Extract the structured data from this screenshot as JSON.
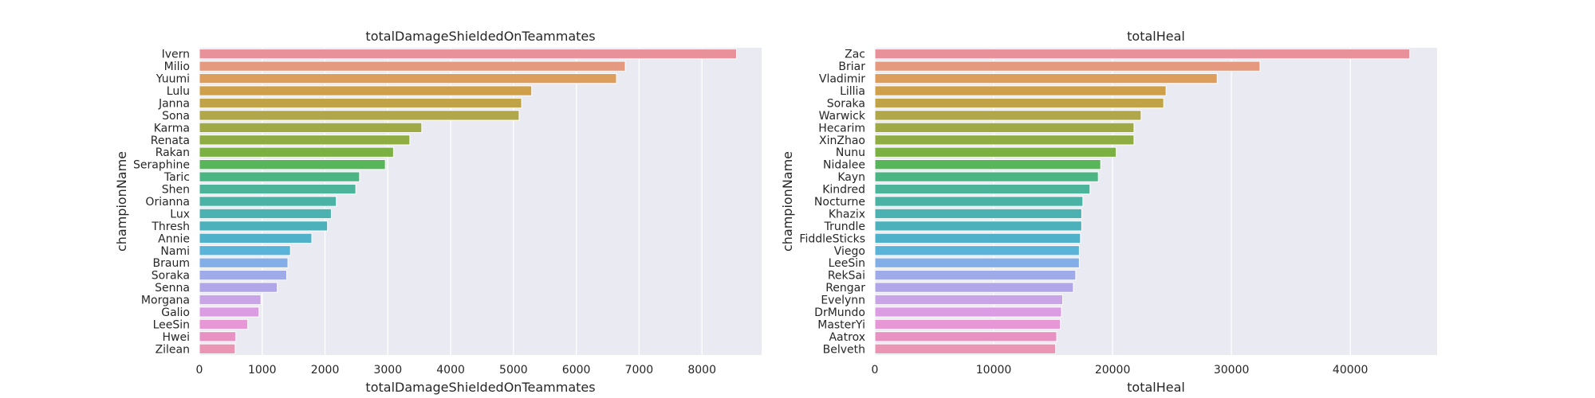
{
  "chart_data": [
    {
      "type": "bar",
      "orientation": "horizontal",
      "title": "totalDamageShieldedOnTeammates",
      "xlabel": "totalDamageShieldedOnTeammates",
      "ylabel": "championName",
      "xlim": [
        0,
        8950
      ],
      "xticks": [
        0,
        1000,
        2000,
        3000,
        4000,
        5000,
        6000,
        7000,
        8000
      ],
      "grid": true,
      "categories": [
        "Ivern",
        "Milio",
        "Yuumi",
        "Lulu",
        "Janna",
        "Sona",
        "Karma",
        "Renata",
        "Rakan",
        "Seraphine",
        "Taric",
        "Shen",
        "Orianna",
        "Lux",
        "Thresh",
        "Annie",
        "Nami",
        "Braum",
        "Soraka",
        "Senna",
        "Morgana",
        "Galio",
        "LeeSin",
        "Hwei",
        "Zilean"
      ],
      "values": [
        8550,
        6780,
        6640,
        5290,
        5130,
        5090,
        3540,
        3350,
        3090,
        2960,
        2550,
        2490,
        2180,
        2100,
        2040,
        1790,
        1450,
        1410,
        1390,
        1240,
        980,
        950,
        770,
        580,
        570
      ],
      "colors": [
        "#e8919a",
        "#e59a80",
        "#dd9d5d",
        "#cfa049",
        "#c1a347",
        "#b0a64a",
        "#9faa45",
        "#8fad42",
        "#7ab142",
        "#58b55a",
        "#4cb584",
        "#4bb49a",
        "#4bb2a6",
        "#4cb1b1",
        "#4db1bc",
        "#50b1cb",
        "#5ab3d9",
        "#84aee8",
        "#9fabe8",
        "#b0a6e8",
        "#c9a5e8",
        "#dc9ce3",
        "#e796d6",
        "#e892c4",
        "#e995b3"
      ]
    },
    {
      "type": "bar",
      "orientation": "horizontal",
      "title": "totalHeal",
      "xlabel": "totalHeal",
      "ylabel": "championName",
      "xlim": [
        0,
        47300
      ],
      "xticks": [
        0,
        10000,
        20000,
        30000,
        40000
      ],
      "grid": true,
      "categories": [
        "Zac",
        "Briar",
        "Vladimir",
        "Lillia",
        "Soraka",
        "Warwick",
        "Hecarim",
        "XinZhao",
        "Nunu",
        "Nidalee",
        "Kayn",
        "Kindred",
        "Nocturne",
        "Khazix",
        "Trundle",
        "FiddleSticks",
        "Viego",
        "LeeSin",
        "RekSai",
        "Rengar",
        "Evelynn",
        "DrMundo",
        "MasterYi",
        "Aatrox",
        "Belveth"
      ],
      "values": [
        45000,
        32400,
        28800,
        24500,
        24300,
        22400,
        21800,
        21800,
        20300,
        19000,
        18800,
        18100,
        17500,
        17400,
        17400,
        17300,
        17200,
        17200,
        16900,
        16700,
        15800,
        15700,
        15600,
        15300,
        15200
      ],
      "colors": [
        "#e8919a",
        "#e59a80",
        "#dd9d5d",
        "#cfa049",
        "#c1a347",
        "#b0a64a",
        "#9faa45",
        "#8fad42",
        "#7ab142",
        "#58b55a",
        "#4cb584",
        "#4bb49a",
        "#4bb2a6",
        "#4cb1b1",
        "#4db1bc",
        "#50b1cb",
        "#5ab3d9",
        "#84aee8",
        "#9fabe8",
        "#b0a6e8",
        "#c9a5e8",
        "#dc9ce3",
        "#e796d6",
        "#e892c4",
        "#e995b3"
      ]
    }
  ]
}
